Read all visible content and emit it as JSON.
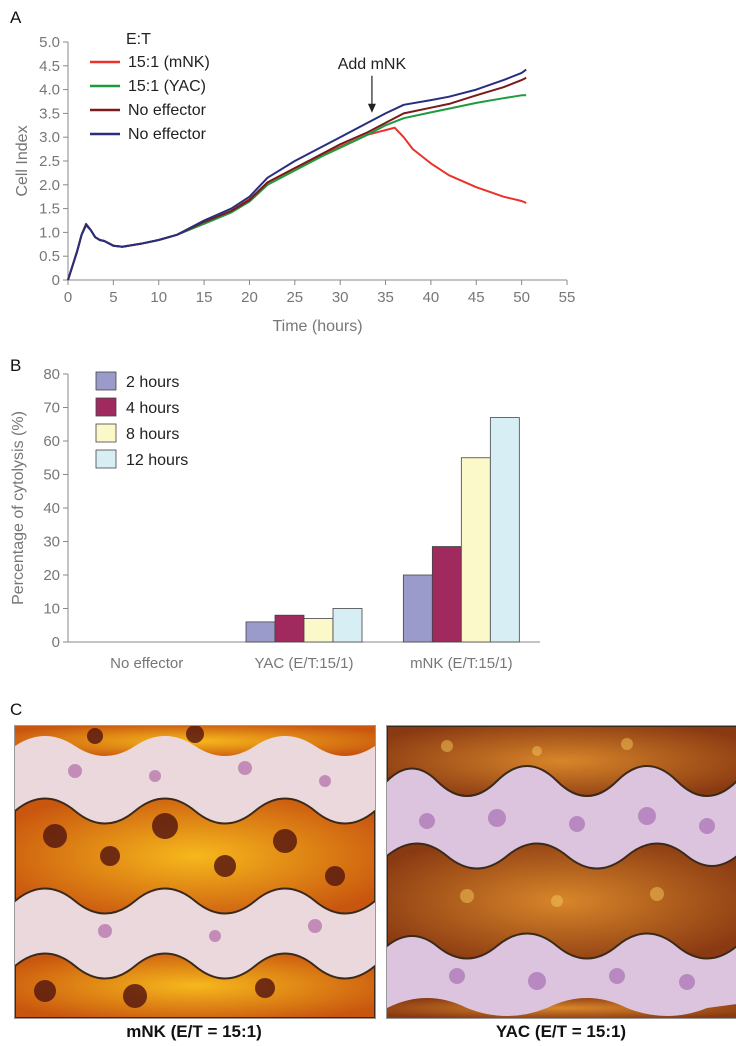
{
  "panels": {
    "a": "A",
    "b": "B",
    "c": "C"
  },
  "chart_data": [
    {
      "type": "line",
      "xlabel": "Time (hours)",
      "ylabel": "Cell Index",
      "xlim": [
        0,
        55
      ],
      "ylim": [
        0,
        5
      ],
      "xticks": [
        "0",
        "5",
        "10",
        "15",
        "20",
        "25",
        "30",
        "35",
        "40",
        "45",
        "50",
        "55"
      ],
      "yticks": [
        "0",
        "0.5",
        "1.0",
        "1.5",
        "2.0",
        "2.5",
        "3.0",
        "3.5",
        "4.0",
        "4.5",
        "5.0"
      ],
      "legend_title": "E:T",
      "legend_position": "top-left",
      "annotation": {
        "text": "Add mNK",
        "x": 33.5,
        "y": 3.45
      },
      "series": [
        {
          "name": "15:1 (mNK)",
          "color": "#e8322b",
          "x": [
            0,
            1,
            1.5,
            2,
            2.5,
            3,
            3.5,
            4,
            5,
            6,
            8,
            10,
            12,
            15,
            18,
            20,
            22,
            25,
            28,
            30,
            33,
            35,
            36,
            37,
            38,
            40,
            42,
            45,
            48,
            50,
            50.5
          ],
          "y": [
            0,
            0.6,
            0.95,
            1.18,
            1.05,
            0.9,
            0.84,
            0.82,
            0.72,
            0.7,
            0.76,
            0.84,
            0.95,
            1.2,
            1.45,
            1.7,
            2.05,
            2.35,
            2.62,
            2.8,
            3.05,
            3.15,
            3.2,
            3.0,
            2.75,
            2.45,
            2.2,
            1.95,
            1.75,
            1.66,
            1.62
          ]
        },
        {
          "name": "15:1 (YAC)",
          "color": "#1f9a3e",
          "x": [
            0,
            1,
            1.5,
            2,
            2.5,
            3,
            3.5,
            4,
            5,
            6,
            8,
            10,
            12,
            15,
            18,
            20,
            22,
            25,
            28,
            30,
            33,
            35,
            37,
            40,
            42,
            45,
            48,
            50,
            50.5
          ],
          "y": [
            0,
            0.6,
            0.95,
            1.15,
            1.05,
            0.9,
            0.84,
            0.82,
            0.72,
            0.7,
            0.76,
            0.84,
            0.95,
            1.18,
            1.42,
            1.65,
            2.0,
            2.3,
            2.6,
            2.78,
            3.05,
            3.25,
            3.4,
            3.52,
            3.6,
            3.72,
            3.82,
            3.88,
            3.88
          ]
        },
        {
          "name": "No effector",
          "color": "#7a1a1a",
          "x": [
            0,
            1,
            1.5,
            2,
            2.5,
            3,
            3.5,
            4,
            5,
            6,
            8,
            10,
            12,
            15,
            18,
            20,
            22,
            25,
            28,
            30,
            33,
            35,
            37,
            40,
            42,
            45,
            48,
            50,
            50.5
          ],
          "y": [
            0,
            0.6,
            0.95,
            1.17,
            1.05,
            0.9,
            0.84,
            0.82,
            0.72,
            0.7,
            0.76,
            0.84,
            0.95,
            1.22,
            1.45,
            1.68,
            2.05,
            2.35,
            2.65,
            2.85,
            3.1,
            3.3,
            3.5,
            3.62,
            3.7,
            3.88,
            4.05,
            4.2,
            4.25
          ]
        },
        {
          "name": "No effector",
          "color": "#2a2e7e",
          "x": [
            0,
            1,
            1.5,
            2,
            2.5,
            3,
            3.5,
            4,
            5,
            6,
            8,
            10,
            12,
            15,
            18,
            20,
            22,
            25,
            28,
            30,
            33,
            35,
            37,
            40,
            42,
            45,
            48,
            50,
            50.5
          ],
          "y": [
            0,
            0.6,
            0.95,
            1.16,
            1.05,
            0.9,
            0.84,
            0.82,
            0.72,
            0.7,
            0.76,
            0.84,
            0.95,
            1.25,
            1.5,
            1.75,
            2.15,
            2.5,
            2.8,
            3.0,
            3.3,
            3.5,
            3.68,
            3.78,
            3.85,
            4.0,
            4.2,
            4.35,
            4.42
          ]
        }
      ]
    },
    {
      "type": "bar",
      "ylabel": "Percentage of cytolysis (%)",
      "ylim": [
        0,
        80
      ],
      "yticks": [
        "0",
        "10",
        "20",
        "30",
        "40",
        "50",
        "60",
        "70",
        "80"
      ],
      "categories": [
        "No effector",
        "YAC (E/T:15/1)",
        "mNK (E/T:15/1)"
      ],
      "legend_position": "top-left",
      "series": [
        {
          "name": "2 hours",
          "color": "#9b9bcb",
          "values": [
            0,
            6,
            20
          ]
        },
        {
          "name": "4 hours",
          "color": "#a02a5e",
          "values": [
            0,
            8,
            28.5
          ]
        },
        {
          "name": "8 hours",
          "color": "#fbf8c9",
          "values": [
            0,
            7,
            55
          ]
        },
        {
          "name": "12 hours",
          "color": "#d6eef4",
          "values": [
            0,
            10,
            67
          ]
        }
      ]
    }
  ],
  "images": [
    {
      "caption": "mNK (E/T = 15:1)",
      "kind": "micrograph-mnk"
    },
    {
      "caption": "YAC (E/T = 15:1)",
      "kind": "micrograph-yac"
    }
  ]
}
